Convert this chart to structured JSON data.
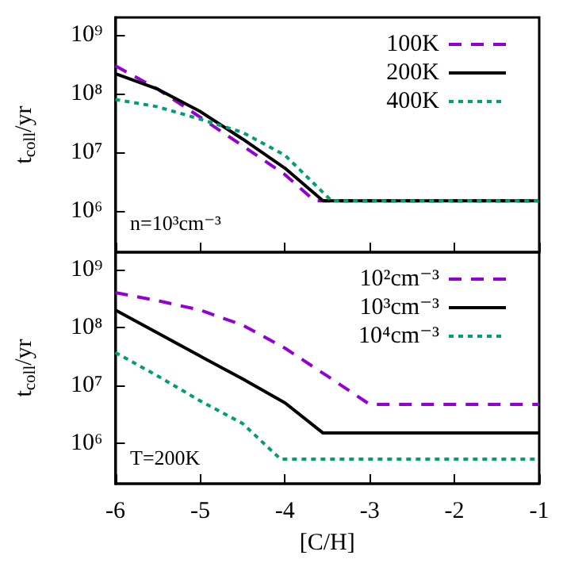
{
  "chart_data": [
    {
      "type": "line",
      "ylabel": "t$_{coll}$/yr",
      "annotations": [
        "n=10³cm⁻³"
      ],
      "xlim": [
        -6,
        -1
      ],
      "xticks": [
        -6,
        -5,
        -4,
        -3,
        -2,
        -1
      ],
      "ylim": [
        200000,
        2000000000
      ],
      "yticks": [
        {
          "value": 1000000,
          "label": "10⁶"
        },
        {
          "value": 10000000,
          "label": "10⁷"
        },
        {
          "value": 100000000,
          "label": "10⁸"
        },
        {
          "value": 1000000000,
          "label": "10⁹"
        }
      ],
      "log": "y",
      "tick_labels": "y",
      "legend": "top right",
      "series": [
        {
          "name": "100K",
          "color": "#9400d3",
          "line_style": "dashed",
          "x": [
            -6,
            -5.5,
            -5,
            -4.5,
            -4,
            -3.65,
            -1
          ],
          "values": [
            300000000,
            120000000,
            40000000,
            13000000,
            4200000,
            1500000,
            1500000
          ]
        },
        {
          "name": "200K",
          "color": "#000000",
          "line_style": "solid",
          "x": [
            -6,
            -5.5,
            -5,
            -4.5,
            -4,
            -3.55,
            -1
          ],
          "values": [
            220000000,
            120000000,
            50000000,
            17000000,
            5400000,
            1500000,
            1500000
          ]
        },
        {
          "name": "400K",
          "color": "#009e73",
          "line_style": "dotted",
          "x": [
            -6,
            -5.5,
            -5,
            -4.5,
            -4,
            -3.45,
            -1
          ],
          "values": [
            80000000,
            60000000,
            37000000,
            22000000,
            9000000,
            1500000,
            1500000
          ]
        }
      ]
    },
    {
      "type": "line",
      "xlabel": "[C/H]",
      "ylabel": "t$_{coll}$/yr",
      "annotations": [
        "T=200K"
      ],
      "xlim": [
        -6,
        -1
      ],
      "xticks": [
        -6,
        -5,
        -4,
        -3,
        -2,
        -1
      ],
      "ylim": [
        200000,
        2000000000
      ],
      "yticks": [
        {
          "value": 1000000,
          "label": "10⁶"
        },
        {
          "value": 10000000,
          "label": "10⁷"
        },
        {
          "value": 100000000,
          "label": "10⁸"
        },
        {
          "value": 1000000000,
          "label": "10⁹"
        }
      ],
      "log": "y",
      "legend": "top right",
      "series": [
        {
          "name": "10²cm⁻³",
          "color": "#9400d3",
          "line_style": "dashed",
          "x": [
            -6,
            -5.5,
            -5,
            -4.5,
            -4,
            -3.5,
            -3,
            -1
          ],
          "values": [
            400000000,
            290000000,
            200000000,
            110000000,
            44000000,
            14500000,
            4700000,
            4700000
          ]
        },
        {
          "name": "10³cm⁻³",
          "color": "#000000",
          "line_style": "solid",
          "x": [
            -6,
            -5.5,
            -5,
            -4.5,
            -4,
            -3.55,
            -1
          ],
          "values": [
            200000000,
            80000000,
            32000000,
            13000000,
            5000000,
            1500000,
            1500000
          ]
        },
        {
          "name": "10⁴cm⁻³",
          "color": "#009e73",
          "line_style": "dotted",
          "x": [
            -6,
            -5.5,
            -5,
            -4.5,
            -4.05,
            -1
          ],
          "values": [
            37000000,
            14500000,
            5400000,
            2200000,
            530000,
            530000
          ]
        }
      ]
    }
  ]
}
